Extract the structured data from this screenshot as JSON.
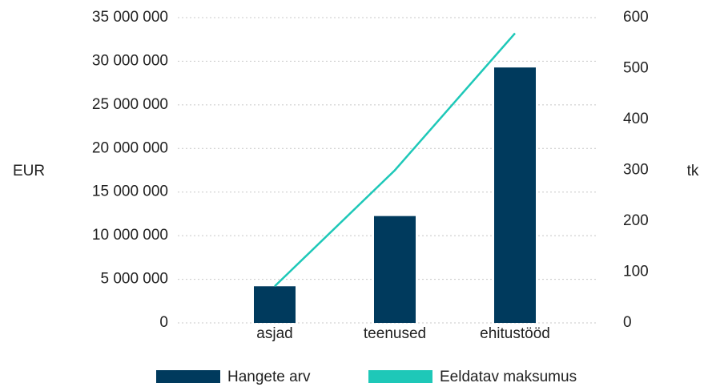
{
  "chart_data": {
    "type": "bar-line",
    "categories": [
      "asjad",
      "teenused",
      "ehitustööd"
    ],
    "series": [
      {
        "name": "Hangete arv",
        "type": "bar",
        "color": "#003a5d",
        "axis": "y2",
        "values": [
          72,
          210,
          502
        ]
      },
      {
        "name": "Eeldatav maksumus",
        "type": "line",
        "color": "#1ec8b8",
        "axis": "y",
        "values": [
          4200000,
          17500000,
          33200000
        ]
      }
    ],
    "ylabel": "EUR",
    "y2label": "tk",
    "ylim": [
      0,
      35000000
    ],
    "yticks": [
      {
        "value": 0,
        "label": "0"
      },
      {
        "value": 5000000,
        "label": "5 000 000"
      },
      {
        "value": 10000000,
        "label": "10 000 000"
      },
      {
        "value": 15000000,
        "label": "15 000 000"
      },
      {
        "value": 20000000,
        "label": "20 000 000"
      },
      {
        "value": 25000000,
        "label": "25 000 000"
      },
      {
        "value": 30000000,
        "label": "30 000 000"
      },
      {
        "value": 35000000,
        "label": "35 000 000"
      }
    ],
    "y2lim": [
      0,
      600
    ],
    "y2ticks": [
      0,
      100,
      200,
      300,
      400,
      500,
      600
    ],
    "grid": true,
    "legend": "bottom"
  }
}
